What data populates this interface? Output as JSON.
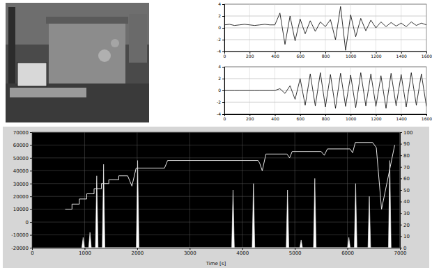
{
  "chart_data": [
    {
      "type": "line",
      "color": "#000000",
      "grid": true,
      "xlim": [
        0,
        1600
      ],
      "xticks": [
        0,
        200,
        400,
        600,
        800,
        1000,
        1200,
        1400,
        1600
      ],
      "ylim": [
        -4,
        4
      ],
      "yticks": [
        -4,
        -2,
        0,
        2,
        4
      ],
      "x": [
        0,
        40,
        80,
        120,
        160,
        200,
        240,
        280,
        320,
        360,
        400,
        440,
        480,
        520,
        560,
        600,
        640,
        680,
        720,
        760,
        800,
        840,
        880,
        920,
        960,
        1000,
        1040,
        1080,
        1120,
        1160,
        1200,
        1240,
        1280,
        1320,
        1360,
        1400,
        1440,
        1480,
        1520,
        1560,
        1600
      ],
      "values": [
        0.5,
        0.6,
        0.4,
        0.5,
        0.6,
        0.5,
        0.4,
        0.5,
        0.6,
        0.5,
        0.5,
        2.5,
        -2.8,
        2.0,
        -2.2,
        1.5,
        -1.0,
        1.2,
        -0.6,
        1.0,
        0.2,
        1.4,
        -2.0,
        3.6,
        -3.8,
        2.2,
        -1.5,
        1.6,
        -0.5,
        1.3,
        0.0,
        1.0,
        0.2,
        0.9,
        0.3,
        0.8,
        0.2,
        1.0,
        0.4,
        0.8,
        0.5
      ]
    },
    {
      "type": "line",
      "color": "#000000",
      "grid": true,
      "xlim": [
        0,
        1600
      ],
      "xticks": [
        0,
        200,
        400,
        600,
        800,
        1000,
        1200,
        1400,
        1600
      ],
      "ylim": [
        -4,
        4
      ],
      "yticks": [
        -4,
        -2,
        0,
        2,
        4
      ],
      "x": [
        0,
        40,
        80,
        120,
        160,
        200,
        240,
        280,
        320,
        360,
        400,
        440,
        480,
        520,
        560,
        600,
        640,
        680,
        720,
        760,
        800,
        840,
        880,
        920,
        960,
        1000,
        1040,
        1080,
        1120,
        1160,
        1200,
        1240,
        1280,
        1320,
        1360,
        1400,
        1440,
        1480,
        1520,
        1560,
        1600
      ],
      "values": [
        0,
        0,
        0,
        0,
        0,
        0,
        0,
        0,
        0,
        0,
        0,
        0.3,
        -0.5,
        0.8,
        -1.5,
        2.0,
        -2.5,
        2.8,
        -2.6,
        3.0,
        -2.8,
        2.7,
        -3.0,
        2.9,
        -2.7,
        2.6,
        -2.9,
        3.0,
        -2.6,
        2.8,
        -2.7,
        2.5,
        -3.0,
        2.9,
        -2.6,
        2.7,
        -2.8,
        3.0,
        -2.5,
        2.8,
        -2.7
      ]
    },
    {
      "type": "line",
      "grid": true,
      "xlabel": "Time [s]",
      "xlim": [
        0,
        7000
      ],
      "xticks": [
        0,
        1000,
        2000,
        3000,
        4000,
        5000,
        6000,
        7000
      ],
      "ylim": [
        -20000,
        70000
      ],
      "yticks": [
        -20000,
        -10000,
        0,
        10000,
        20000,
        30000,
        40000,
        50000,
        60000,
        70000
      ],
      "y2lim": [
        0,
        100
      ],
      "y2ticks": [
        0,
        10,
        20,
        30,
        40,
        50,
        60,
        70,
        80,
        90,
        100
      ],
      "series": [
        {
          "type": "area",
          "color": "#ffffff",
          "x": [
            947,
            972,
            997,
            1077,
            1102,
            1127,
            1206,
            1231,
            1256,
            1336,
            1361,
            1386,
            1984,
            2009,
            2034,
            3799,
            3824,
            3849,
            4188,
            4213,
            4238,
            4836,
            4861,
            4886,
            5095,
            5120,
            5145,
            5355,
            5380,
            5405,
            6003,
            6028,
            6053,
            6132,
            6157,
            6182,
            6392,
            6417,
            6442,
            6781,
            6806,
            6831
          ],
          "values": [
            -20000,
            -12000,
            -20000,
            -20000,
            -8000,
            -20000,
            -20000,
            36000,
            -20000,
            -20000,
            45000,
            -20000,
            -20000,
            48000,
            -20000,
            -20000,
            25000,
            -20000,
            -20000,
            30000,
            -20000,
            -20000,
            25000,
            -20000,
            -20000,
            -14000,
            -20000,
            -20000,
            34000,
            -20000,
            -20000,
            -12000,
            -20000,
            -20000,
            30000,
            -20000,
            -20000,
            20000,
            -20000,
            -20000,
            48000,
            -20000
          ]
        },
        {
          "type": "line",
          "color": "#e8e8e8",
          "x": [
            630,
            760,
            760,
            900,
            900,
            1040,
            1040,
            1180,
            1180,
            1320,
            1320,
            1460,
            1460,
            1650,
            1650,
            1820,
            1900,
            1980,
            2520,
            2580,
            4300,
            4330,
            4380,
            4450,
            4850,
            4900,
            4950,
            5500,
            5560,
            5620,
            6050,
            6100,
            6150,
            6480,
            6550,
            6650,
            6900
          ],
          "values": [
            10000,
            10000,
            14000,
            14000,
            18000,
            18000,
            22000,
            22000,
            26000,
            26000,
            30000,
            30000,
            33000,
            33000,
            36000,
            36000,
            28000,
            42000,
            42000,
            48000,
            48000,
            46000,
            40000,
            53000,
            53000,
            50000,
            55000,
            55000,
            52000,
            57000,
            57000,
            54000,
            62000,
            62000,
            58000,
            10000,
            60000
          ]
        }
      ]
    }
  ]
}
